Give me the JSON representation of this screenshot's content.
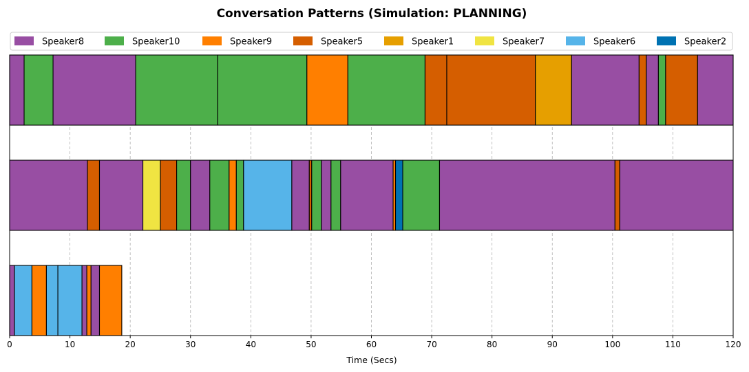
{
  "chart_data": {
    "type": "timeline",
    "title": "Conversation Patterns (Simulation: PLANNING)",
    "xlabel": "Time (Secs)",
    "xlim": [
      0,
      120
    ],
    "xticks": [
      0,
      10,
      20,
      30,
      40,
      50,
      60,
      70,
      80,
      90,
      100,
      110,
      120
    ],
    "grid": "vertical dashed",
    "legend_position": "top",
    "speakers": [
      {
        "name": "Speaker8",
        "color": "#984ea3"
      },
      {
        "name": "Speaker10",
        "color": "#4daf4a"
      },
      {
        "name": "Speaker9",
        "color": "#ff7f00"
      },
      {
        "name": "Speaker5",
        "color": "#d55e00"
      },
      {
        "name": "Speaker1",
        "color": "#e69f00"
      },
      {
        "name": "Speaker7",
        "color": "#f0e442"
      },
      {
        "name": "Speaker6",
        "color": "#56b4e9"
      },
      {
        "name": "Speaker2",
        "color": "#0072b2"
      }
    ],
    "rows": [
      {
        "segments": [
          {
            "speaker": "Speaker8",
            "start": 0.0,
            "end": 2.4
          },
          {
            "speaker": "Speaker10",
            "start": 2.4,
            "end": 7.2
          },
          {
            "speaker": "Speaker8",
            "start": 7.2,
            "end": 20.9
          },
          {
            "speaker": "Speaker10",
            "start": 20.9,
            "end": 34.5
          },
          {
            "speaker": "Speaker10",
            "start": 34.5,
            "end": 49.3
          },
          {
            "speaker": "Speaker9",
            "start": 49.3,
            "end": 56.1
          },
          {
            "speaker": "Speaker10",
            "start": 56.1,
            "end": 68.9
          },
          {
            "speaker": "Speaker5",
            "start": 68.9,
            "end": 72.5
          },
          {
            "speaker": "Speaker5",
            "start": 72.5,
            "end": 87.2
          },
          {
            "speaker": "Speaker1",
            "start": 87.2,
            "end": 93.2
          },
          {
            "speaker": "Speaker8",
            "start": 93.2,
            "end": 104.4
          },
          {
            "speaker": "Speaker5",
            "start": 104.4,
            "end": 105.6
          },
          {
            "speaker": "Speaker8",
            "start": 105.6,
            "end": 107.6
          },
          {
            "speaker": "Speaker10",
            "start": 107.6,
            "end": 108.8
          },
          {
            "speaker": "Speaker5",
            "start": 108.8,
            "end": 114.1
          },
          {
            "speaker": "Speaker8",
            "start": 114.1,
            "end": 120.0
          }
        ]
      },
      {
        "segments": [
          {
            "speaker": "Speaker8",
            "start": 0.0,
            "end": 12.9
          },
          {
            "speaker": "Speaker5",
            "start": 12.9,
            "end": 14.9
          },
          {
            "speaker": "Speaker8",
            "start": 14.9,
            "end": 22.1
          },
          {
            "speaker": "Speaker7",
            "start": 22.1,
            "end": 25.0
          },
          {
            "speaker": "Speaker5",
            "start": 25.0,
            "end": 27.7
          },
          {
            "speaker": "Speaker10",
            "start": 27.7,
            "end": 30.0
          },
          {
            "speaker": "Speaker8",
            "start": 30.0,
            "end": 33.2
          },
          {
            "speaker": "Speaker10",
            "start": 33.2,
            "end": 36.4
          },
          {
            "speaker": "Speaker9",
            "start": 36.4,
            "end": 37.6
          },
          {
            "speaker": "Speaker10",
            "start": 37.6,
            "end": 38.8
          },
          {
            "speaker": "Speaker6",
            "start": 38.8,
            "end": 46.8
          },
          {
            "speaker": "Speaker8",
            "start": 46.8,
            "end": 49.7
          },
          {
            "speaker": "Speaker5",
            "start": 49.7,
            "end": 50.1
          },
          {
            "speaker": "Speaker10",
            "start": 50.1,
            "end": 51.7
          },
          {
            "speaker": "Speaker8",
            "start": 51.7,
            "end": 53.3
          },
          {
            "speaker": "Speaker10",
            "start": 53.3,
            "end": 54.9
          },
          {
            "speaker": "Speaker8",
            "start": 54.9,
            "end": 63.6
          },
          {
            "speaker": "Speaker9",
            "start": 63.6,
            "end": 64.0
          },
          {
            "speaker": "Speaker2",
            "start": 64.0,
            "end": 65.2
          },
          {
            "speaker": "Speaker10",
            "start": 65.2,
            "end": 71.3
          },
          {
            "speaker": "Speaker8",
            "start": 71.3,
            "end": 100.4
          },
          {
            "speaker": "Speaker5",
            "start": 100.4,
            "end": 101.2
          },
          {
            "speaker": "Speaker8",
            "start": 101.2,
            "end": 120.0
          }
        ]
      },
      {
        "segments": [
          {
            "speaker": "Speaker8",
            "start": 0.0,
            "end": 0.8
          },
          {
            "speaker": "Speaker6",
            "start": 0.8,
            "end": 3.7
          },
          {
            "speaker": "Speaker9",
            "start": 3.7,
            "end": 6.1
          },
          {
            "speaker": "Speaker6",
            "start": 6.1,
            "end": 8.0
          },
          {
            "speaker": "Speaker6",
            "start": 8.0,
            "end": 12.0
          },
          {
            "speaker": "Speaker8",
            "start": 12.0,
            "end": 12.8
          },
          {
            "speaker": "Speaker9",
            "start": 12.8,
            "end": 13.5
          },
          {
            "speaker": "Speaker8",
            "start": 13.5,
            "end": 14.9
          },
          {
            "speaker": "Speaker9",
            "start": 14.9,
            "end": 18.6
          }
        ]
      }
    ]
  }
}
